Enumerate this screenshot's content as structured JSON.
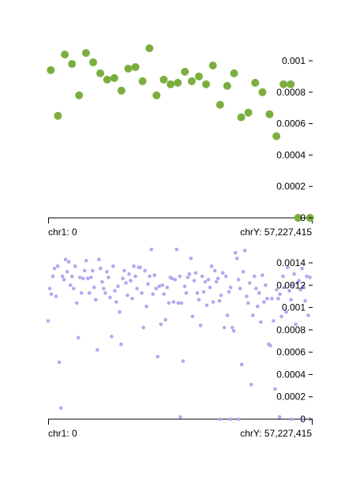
{
  "colors": {
    "top_series": "#7cae3f",
    "bottom_series": "#b8a6ef",
    "axis": "#000000"
  },
  "chart_data": [
    {
      "type": "scatter",
      "x_range_labels": {
        "start": "chr1: 0",
        "end": "chrY: 57,227,415"
      },
      "xlim": [
        0,
        1
      ],
      "ylim": [
        0,
        0.001
      ],
      "y_ticks": [
        {
          "value": 0,
          "label": "0"
        },
        {
          "value": 0.0002,
          "label": "0.0002"
        },
        {
          "value": 0.0004,
          "label": "0.0004"
        },
        {
          "value": 0.0006,
          "label": "0.0006"
        },
        {
          "value": 0.0008,
          "label": "0.0008"
        },
        {
          "value": 0.001,
          "label": "0.001"
        }
      ],
      "points": [
        [
          0.01,
          0.00094
        ],
        [
          0.037,
          0.00065
        ],
        [
          0.063,
          0.00104
        ],
        [
          0.09,
          0.00098
        ],
        [
          0.117,
          0.00078
        ],
        [
          0.143,
          0.00105
        ],
        [
          0.17,
          0.00099
        ],
        [
          0.197,
          0.00092
        ],
        [
          0.223,
          0.00088
        ],
        [
          0.25,
          0.00089
        ],
        [
          0.277,
          0.00081
        ],
        [
          0.303,
          0.00095
        ],
        [
          0.33,
          0.00096
        ],
        [
          0.357,
          0.00087
        ],
        [
          0.383,
          0.00108
        ],
        [
          0.41,
          0.00078
        ],
        [
          0.437,
          0.00088
        ],
        [
          0.463,
          0.00085
        ],
        [
          0.49,
          0.00086
        ],
        [
          0.517,
          0.00093
        ],
        [
          0.543,
          0.00087
        ],
        [
          0.57,
          0.0009
        ],
        [
          0.597,
          0.00085
        ],
        [
          0.623,
          0.00097
        ],
        [
          0.65,
          0.00072
        ],
        [
          0.677,
          0.00084
        ],
        [
          0.703,
          0.00092
        ],
        [
          0.73,
          0.00064
        ],
        [
          0.757,
          0.00067
        ],
        [
          0.783,
          0.00086
        ],
        [
          0.81,
          0.0008
        ],
        [
          0.837,
          0.00066
        ],
        [
          0.863,
          0.00052
        ],
        [
          0.89,
          0.00085
        ],
        [
          0.917,
          0.00085
        ],
        [
          0.945,
          0.0
        ],
        [
          0.99,
          0.0
        ]
      ]
    },
    {
      "type": "scatter",
      "x_range_labels": {
        "start": "chr1: 0",
        "end": "chrY: 57,227,415"
      },
      "xlim": [
        0,
        1
      ],
      "ylim": [
        0,
        0.00152
      ],
      "y_ticks": [
        {
          "value": 0,
          "label": "0"
        },
        {
          "value": 0.0002,
          "label": "0.0002"
        },
        {
          "value": 0.0004,
          "label": "0.0004"
        },
        {
          "value": 0.0006,
          "label": "0.0006"
        },
        {
          "value": 0.0008,
          "label": "0.0008"
        },
        {
          "value": 0.001,
          "label": "0.001"
        },
        {
          "value": 0.0012,
          "label": "0.0012"
        },
        {
          "value": 0.0014,
          "label": "0.0014"
        }
      ],
      "points": [
        [
          0.0,
          0.00088
        ],
        [
          0.006,
          0.00117
        ],
        [
          0.012,
          0.00112
        ],
        [
          0.018,
          0.00128
        ],
        [
          0.024,
          0.00135
        ],
        [
          0.03,
          0.0011
        ],
        [
          0.036,
          0.00137
        ],
        [
          0.042,
          0.00051
        ],
        [
          0.048,
          0.0001
        ],
        [
          0.054,
          0.00128
        ],
        [
          0.06,
          0.00125
        ],
        [
          0.066,
          0.00143
        ],
        [
          0.072,
          0.00132
        ],
        [
          0.078,
          0.00141
        ],
        [
          0.084,
          0.0012
        ],
        [
          0.09,
          0.00128
        ],
        [
          0.096,
          0.00117
        ],
        [
          0.102,
          0.00137
        ],
        [
          0.108,
          0.00104
        ],
        [
          0.114,
          0.00073
        ],
        [
          0.12,
          0.00127
        ],
        [
          0.126,
          0.00113
        ],
        [
          0.132,
          0.00126
        ],
        [
          0.138,
          0.00133
        ],
        [
          0.144,
          0.00142
        ],
        [
          0.15,
          0.00126
        ],
        [
          0.156,
          0.00113
        ],
        [
          0.162,
          0.00127
        ],
        [
          0.168,
          0.00133
        ],
        [
          0.174,
          0.00118
        ],
        [
          0.18,
          0.00107
        ],
        [
          0.186,
          0.00062
        ],
        [
          0.192,
          0.00143
        ],
        [
          0.198,
          0.00135
        ],
        [
          0.204,
          0.00123
        ],
        [
          0.21,
          0.00117
        ],
        [
          0.216,
          0.00113
        ],
        [
          0.222,
          0.00132
        ],
        [
          0.228,
          0.00127
        ],
        [
          0.234,
          0.00109
        ],
        [
          0.24,
          0.00074
        ],
        [
          0.246,
          0.00137
        ],
        [
          0.252,
          0.00115
        ],
        [
          0.258,
          0.00105
        ],
        [
          0.264,
          0.00119
        ],
        [
          0.27,
          0.00096
        ],
        [
          0.276,
          0.00067
        ],
        [
          0.282,
          0.00126
        ],
        [
          0.288,
          0.00133
        ],
        [
          0.294,
          0.00122
        ],
        [
          0.3,
          0.00111
        ],
        [
          0.306,
          0.0013
        ],
        [
          0.312,
          0.00124
        ],
        [
          0.318,
          0.00108
        ],
        [
          0.324,
          0.00137
        ],
        [
          0.33,
          0.00128
        ],
        [
          0.336,
          0.00117
        ],
        [
          0.342,
          0.00136
        ],
        [
          0.348,
          0.00136
        ],
        [
          0.354,
          0.00113
        ],
        [
          0.36,
          0.00082
        ],
        [
          0.366,
          0.00133
        ],
        [
          0.372,
          0.00101
        ],
        [
          0.378,
          0.00121
        ],
        [
          0.384,
          0.00128
        ],
        [
          0.39,
          0.00152
        ],
        [
          0.396,
          0.00112
        ],
        [
          0.402,
          0.00129
        ],
        [
          0.408,
          0.00117
        ],
        [
          0.414,
          0.00056
        ],
        [
          0.42,
          0.00119
        ],
        [
          0.426,
          0.00085
        ],
        [
          0.432,
          0.0012
        ],
        [
          0.438,
          0.00112
        ],
        [
          0.444,
          0.00089
        ],
        [
          0.45,
          0.00118
        ],
        [
          0.456,
          0.00104
        ],
        [
          0.462,
          0.00127
        ],
        [
          0.468,
          0.00126
        ],
        [
          0.474,
          0.00105
        ],
        [
          0.48,
          0.00125
        ],
        [
          0.486,
          0.00152
        ],
        [
          0.492,
          0.00104
        ],
        [
          0.498,
          0.00128
        ],
        [
          0.504,
          0.00104
        ],
        [
          0.51,
          0.00052
        ],
        [
          0.516,
          0.00119
        ],
        [
          0.522,
          0.00113
        ],
        [
          0.528,
          0.00127
        ],
        [
          0.534,
          0.0013
        ],
        [
          0.54,
          0.00144
        ],
        [
          0.546,
          0.00092
        ],
        [
          0.552,
          0.00124
        ],
        [
          0.558,
          0.00131
        ],
        [
          0.564,
          0.00113
        ],
        [
          0.57,
          0.00107
        ],
        [
          0.576,
          0.00084
        ],
        [
          0.582,
          0.00128
        ],
        [
          0.588,
          0.00114
        ],
        [
          0.594,
          0.00123
        ],
        [
          0.6,
          0.00102
        ],
        [
          0.606,
          0.00125
        ],
        [
          0.612,
          0.00118
        ],
        [
          0.618,
          0.00137
        ],
        [
          0.624,
          0.00105
        ],
        [
          0.63,
          0.00133
        ],
        [
          0.636,
          0.00123
        ],
        [
          0.642,
          0.00126
        ],
        [
          0.648,
          0.00106
        ],
        [
          0.654,
          0.00111
        ],
        [
          0.66,
          0.00131
        ],
        [
          0.666,
          0.00082
        ],
        [
          0.672,
          0.00128
        ],
        [
          0.678,
          0.00093
        ],
        [
          0.684,
          0.00114
        ],
        [
          0.69,
          0.00118
        ],
        [
          0.696,
          0.00082
        ],
        [
          0.702,
          0.00079
        ],
        [
          0.708,
          0.00149
        ],
        [
          0.714,
          0.00144
        ],
        [
          0.72,
          0.00125
        ],
        [
          0.726,
          0.00117
        ],
        [
          0.732,
          0.00049
        ],
        [
          0.738,
          0.00132
        ],
        [
          0.744,
          0.00151
        ],
        [
          0.75,
          0.0011
        ],
        [
          0.756,
          0.00104
        ],
        [
          0.762,
          0.00122
        ],
        [
          0.768,
          0.00031
        ],
        [
          0.774,
          0.00093
        ],
        [
          0.78,
          0.00128
        ],
        [
          0.786,
          0.00117
        ],
        [
          0.792,
          0.00101
        ],
        [
          0.798,
          0.00113
        ],
        [
          0.804,
          0.00087
        ],
        [
          0.81,
          0.00129
        ],
        [
          0.816,
          0.00105
        ],
        [
          0.822,
          0.0012
        ],
        [
          0.828,
          0.00108
        ],
        [
          0.834,
          0.00067
        ],
        [
          0.84,
          0.00066
        ],
        [
          0.846,
          0.00108
        ],
        [
          0.852,
          0.00088
        ],
        [
          0.858,
          0.00027
        ],
        [
          0.864,
          0.00116
        ],
        [
          0.87,
          0.00108
        ],
        [
          0.876,
          0.00112
        ],
        [
          0.882,
          0.00092
        ],
        [
          0.888,
          0.00128
        ],
        [
          0.894,
          0.00118
        ],
        [
          0.9,
          0.00096
        ],
        [
          0.906,
          0.00136
        ],
        [
          0.912,
          0.00115
        ],
        [
          0.918,
          0.00107
        ],
        [
          0.924,
          0.0012
        ],
        [
          0.93,
          0.0013
        ],
        [
          0.936,
          0.00085
        ],
        [
          0.942,
          0.00122
        ],
        [
          0.948,
          0.00124
        ],
        [
          0.954,
          0.00116
        ],
        [
          0.96,
          0.00135
        ],
        [
          0.966,
          0.00119
        ],
        [
          0.972,
          0.00106
        ],
        [
          0.978,
          0.00128
        ],
        [
          0.984,
          0.00093
        ],
        [
          0.99,
          0.00127
        ],
        [
          0.5,
          2e-05
        ],
        [
          0.65,
          0.0
        ],
        [
          0.69,
          0.0
        ],
        [
          0.72,
          0.0
        ],
        [
          0.875,
          2e-05
        ],
        [
          0.92,
          0.0
        ],
        [
          0.96,
          0.0
        ],
        [
          0.99,
          0.0
        ]
      ]
    }
  ]
}
